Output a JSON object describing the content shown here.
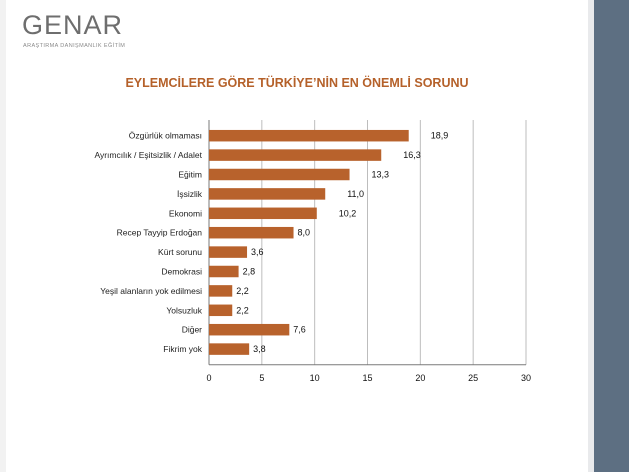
{
  "logo": {
    "word": "GENAR",
    "subtitle": "ARAŞTIRMA DANIŞMANLIK EĞİTİM"
  },
  "colors": {
    "bar": "#b8622c",
    "title": "#b5612a",
    "side_panel": "#5d6f82"
  },
  "chart_data": {
    "type": "bar",
    "orientation": "horizontal",
    "title": "EYLEMCİLERE GÖRE TÜRKİYE’NİN EN ÖNEMLİ SORUNU",
    "categories": [
      "Özgürlük olmaması",
      "Ayrımcılık / Eşitsizlik / Adalet",
      "Eğitim",
      "İşsizlik",
      "Ekonomi",
      "Recep Tayyip Erdoğan",
      "Kürt sorunu",
      "Demokrasi",
      "Yeşil alanların yok edilmesi",
      "Yolsuzluk",
      "Diğer",
      "Fikrim yok"
    ],
    "values": [
      18.9,
      16.3,
      13.3,
      11.0,
      10.2,
      8.0,
      3.6,
      2.8,
      2.2,
      2.2,
      7.6,
      3.8
    ],
    "value_labels": [
      "18,9",
      "16,3",
      "13,3",
      "11,0",
      "10,2",
      "8,0",
      "3,6",
      "2,8",
      "2,2",
      "2,2",
      "7,6",
      "3,8"
    ],
    "xlim": [
      0,
      30
    ],
    "xticks": [
      "0",
      "5",
      "10",
      "15",
      "20",
      "25",
      "30"
    ],
    "grid": true,
    "legend": false
  }
}
